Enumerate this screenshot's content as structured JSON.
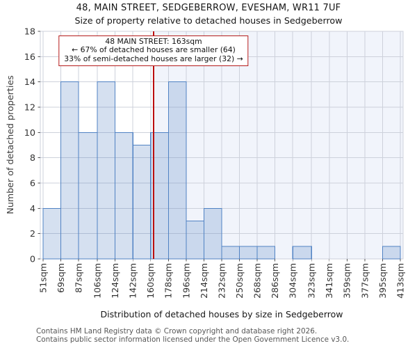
{
  "header": {
    "title": "48, MAIN STREET, SEDGEBERROW, EVESHAM, WR11 7UF",
    "subtitle": "Size of property relative to detached houses in Sedgeberrow"
  },
  "chart_data": {
    "type": "bar",
    "title": "48, MAIN STREET, SEDGEBERROW, EVESHAM, WR11 7UF",
    "subtitle": "Size of property relative to detached houses in Sedgeberrow",
    "xlabel": "Distribution of detached houses by size in Sedgeberrow",
    "ylabel": "Number of detached properties",
    "bin_edges": [
      51,
      69,
      87,
      106,
      124,
      142,
      160,
      178,
      196,
      214,
      232,
      250,
      268,
      286,
      304,
      323,
      341,
      359,
      377,
      395,
      413
    ],
    "xtick_labels": [
      "51sqm",
      "69sqm",
      "87sqm",
      "106sqm",
      "124sqm",
      "142sqm",
      "160sqm",
      "178sqm",
      "196sqm",
      "214sqm",
      "232sqm",
      "250sqm",
      "268sqm",
      "286sqm",
      "304sqm",
      "323sqm",
      "341sqm",
      "359sqm",
      "377sqm",
      "395sqm",
      "413sqm"
    ],
    "counts": [
      4,
      14,
      10,
      14,
      10,
      9,
      10,
      14,
      3,
      4,
      1,
      1,
      1,
      0,
      1,
      0,
      0,
      0,
      0,
      1
    ],
    "yticks": [
      0,
      2,
      4,
      6,
      8,
      10,
      12,
      14,
      16,
      18
    ],
    "ylim": [
      0,
      18
    ],
    "grid": true,
    "legend": null,
    "marker": {
      "value": 163,
      "unit": "sqm"
    },
    "annotation_lines": [
      "48 MAIN STREET: 163sqm",
      "← 67% of detached houses are smaller (64)",
      "33% of semi-detached houses are larger (32) →"
    ],
    "colors": {
      "bar_edge": "#5082c3",
      "bar_fill_rgba": "rgba(88,133,196,0.25)",
      "marker_line": "#bb0e0e",
      "annotation_border": "#b51b1b",
      "grid": "#cdd1db",
      "shade_right": "#f1f4fb",
      "tick_text": "#333333"
    }
  },
  "footer": {
    "line1": "Contains HM Land Registry data © Crown copyright and database right 2026.",
    "line2": "Contains public sector information licensed under the Open Government Licence v3.0."
  }
}
